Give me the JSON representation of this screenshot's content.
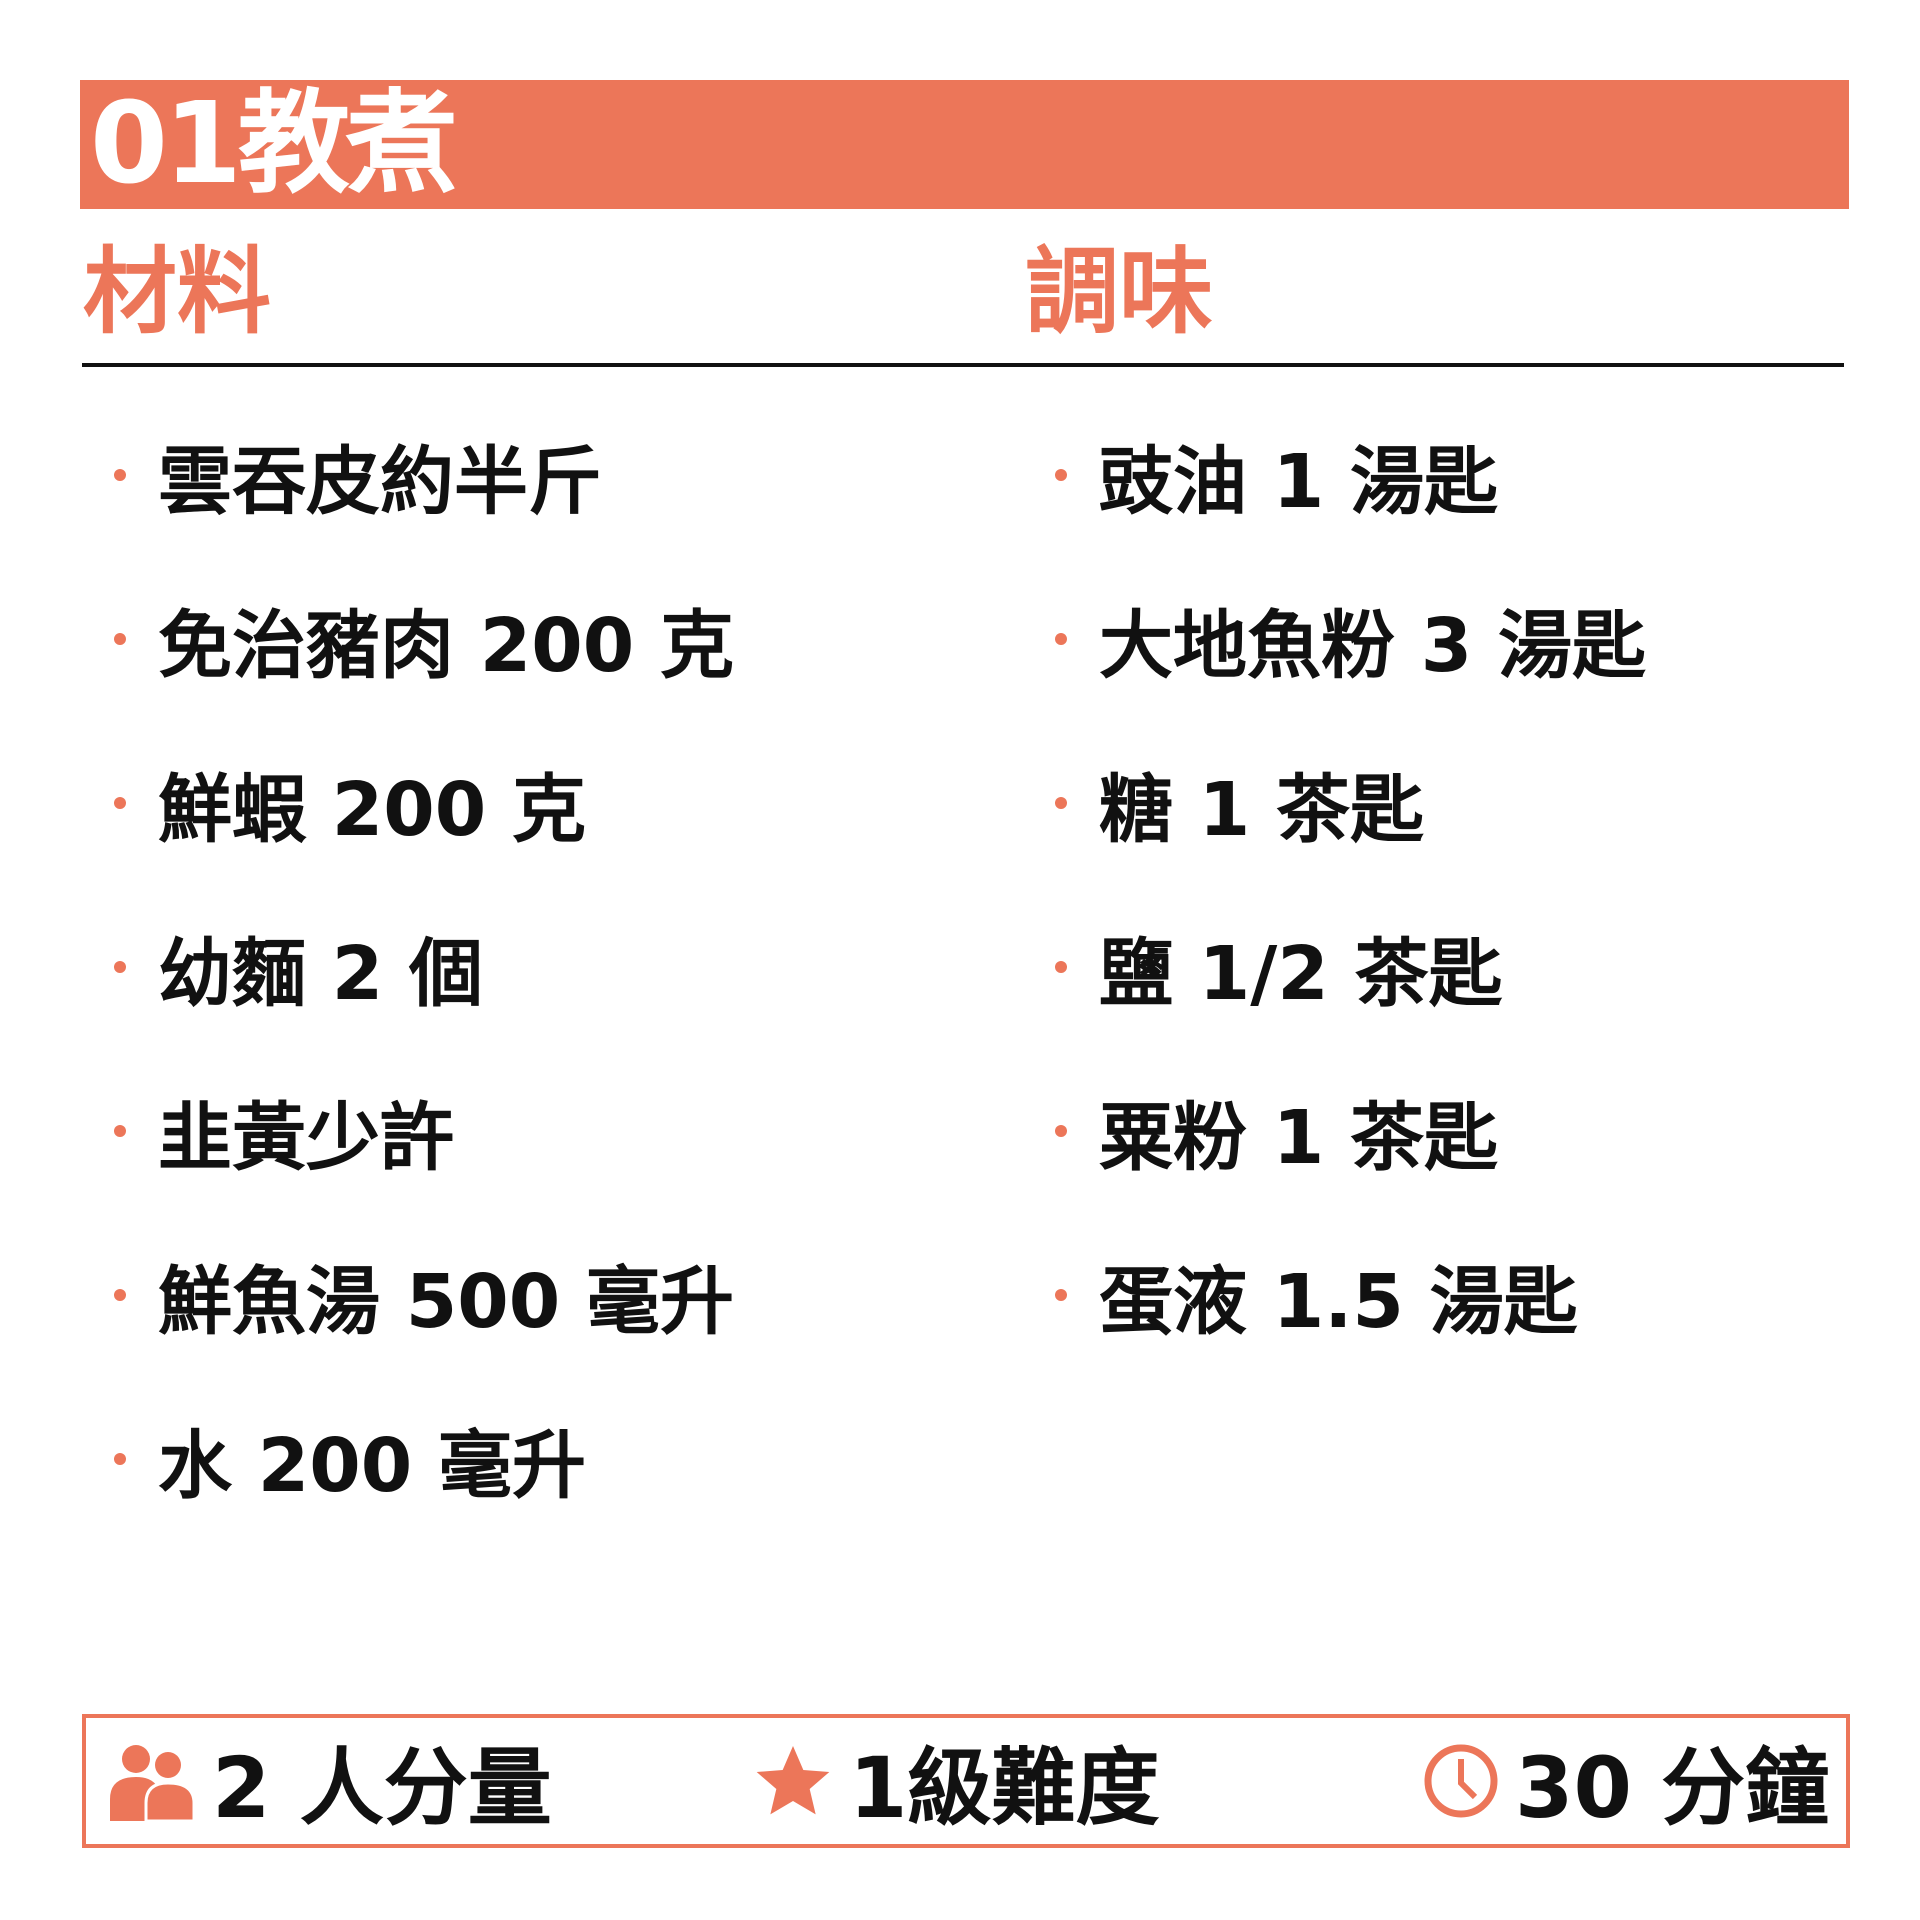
{
  "colors": {
    "accent": "#EC7659",
    "text": "#111111"
  },
  "header": {
    "title": "01教煮"
  },
  "ingredients": {
    "heading": "材料",
    "items": [
      "雲吞皮約半斤",
      "免治豬肉 200 克",
      "鮮蝦 200 克",
      "幼麵 2 個",
      "韭黃少許",
      "鮮魚湯 500 毫升",
      "水 200 毫升"
    ]
  },
  "seasoning": {
    "heading": "調味",
    "items": [
      "豉油 1 湯匙",
      "大地魚粉 3 湯匙",
      "糖 1 茶匙",
      "鹽 1/2 茶匙",
      "粟粉 1 茶匙",
      "蛋液 1.5 湯匙"
    ]
  },
  "footer": {
    "servings": {
      "icon": "people-icon",
      "label": "2 人分量"
    },
    "difficulty": {
      "icon": "star-icon",
      "label": "1級難度"
    },
    "time": {
      "icon": "clock-icon",
      "label": "30 分鐘"
    }
  }
}
